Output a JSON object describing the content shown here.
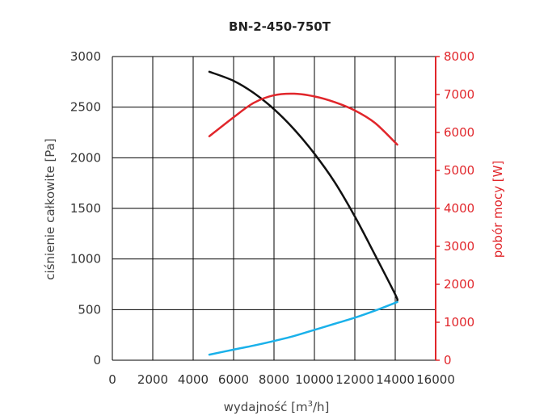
{
  "chart_data": {
    "type": "line",
    "title": "BN-2-450-750T",
    "xlabel": "wydajność [m",
    "xlabel_sup": "3",
    "xlabel_tail": "/h]",
    "ylabel": "ciśnienie całkowite [Pa]",
    "ylabel_right": "pobór mocy [W]",
    "xlim": [
      0,
      16000
    ],
    "ylim": [
      0,
      3000
    ],
    "ylim_right": [
      0,
      8000
    ],
    "x_ticks": [
      "0",
      "2000",
      "4000",
      "6000",
      "8000",
      "10000",
      "12000",
      "14000",
      "16000"
    ],
    "y_ticks": [
      "0",
      "500",
      "1000",
      "1500",
      "2000",
      "2500",
      "3000"
    ],
    "y_ticks_right": [
      "0",
      "1000",
      "2000",
      "3000",
      "4000",
      "5000",
      "6000",
      "7000",
      "8000"
    ],
    "grid": true,
    "colors": {
      "pressure": "#111111",
      "power": "#e1262b",
      "system": "#1ab1ea",
      "grid": "#000000"
    },
    "series": [
      {
        "key": "pressure",
        "axis": "left",
        "color": "#111111",
        "x": [
          4800,
          6000,
          7000,
          8000,
          9000,
          10000,
          11000,
          12000,
          13000,
          14000,
          14100
        ],
        "y": [
          2850,
          2760,
          2640,
          2480,
          2280,
          2040,
          1760,
          1420,
          1040,
          650,
          590
        ]
      },
      {
        "key": "power",
        "axis": "right",
        "color": "#e1262b",
        "x": [
          4800,
          6000,
          7000,
          8000,
          9000,
          10000,
          11000,
          12000,
          13000,
          14100
        ],
        "y": [
          5900,
          6400,
          6780,
          6980,
          7020,
          6950,
          6800,
          6580,
          6250,
          5680
        ]
      },
      {
        "key": "system",
        "axis": "left",
        "color": "#1ab1ea",
        "x": [
          4800,
          6000,
          7000,
          8000,
          9000,
          10000,
          11000,
          12000,
          13000,
          14100
        ],
        "y": [
          55,
          105,
          145,
          190,
          240,
          300,
          360,
          420,
          490,
          575
        ]
      }
    ]
  }
}
